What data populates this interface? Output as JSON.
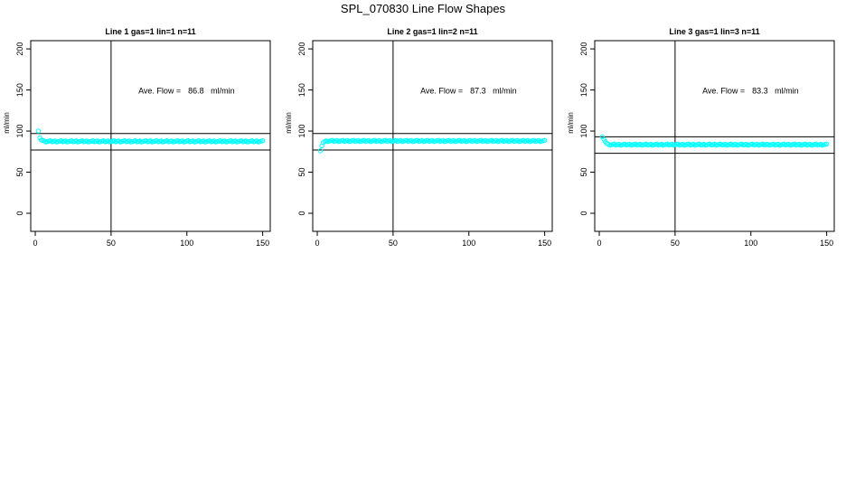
{
  "title": "SPL_070830  Line Flow Shapes",
  "colors": {
    "points": "#00ffff",
    "axes": "#000000",
    "background": "#ffffff"
  },
  "chart_data": [
    {
      "type": "scatter",
      "title": "Line 1 gas=1 lin=1 n=11",
      "ylabel": "ml/min",
      "xlim": [
        -3,
        155
      ],
      "ylim": [
        -22,
        210
      ],
      "xticks": [
        0,
        50,
        100,
        150
      ],
      "yticks": [
        0,
        50,
        100,
        150,
        200
      ],
      "vline": 50,
      "hlines": [
        97,
        77
      ],
      "annotation": {
        "prefix": "Ave. Flow =",
        "value": "86.8",
        "unit": "ml/min"
      },
      "x_range": [
        2,
        150
      ],
      "start_points": [
        [
          2,
          100
        ],
        [
          3,
          92
        ],
        [
          4,
          89
        ],
        [
          5,
          88.5
        ],
        [
          6,
          88
        ]
      ],
      "steady_value": 87.5
    },
    {
      "type": "scatter",
      "title": "Line 2 gas=1 lin=2 n=11",
      "ylabel": "ml/min",
      "xlim": [
        -3,
        155
      ],
      "ylim": [
        -22,
        210
      ],
      "xticks": [
        0,
        50,
        100,
        150
      ],
      "yticks": [
        0,
        50,
        100,
        150,
        200
      ],
      "vline": 50,
      "hlines": [
        97,
        77
      ],
      "annotation": {
        "prefix": "Ave. Flow =",
        "value": "87.3",
        "unit": "ml/min"
      },
      "x_range": [
        2,
        150
      ],
      "start_points": [
        [
          2,
          76
        ],
        [
          3,
          82
        ],
        [
          4,
          86
        ],
        [
          5,
          87.5
        ],
        [
          6,
          88
        ]
      ],
      "steady_value": 88
    },
    {
      "type": "scatter",
      "title": "Line 3 gas=1 lin=3 n=11",
      "ylabel": "ml/min",
      "xlim": [
        -3,
        155
      ],
      "ylim": [
        -22,
        210
      ],
      "xticks": [
        0,
        50,
        100,
        150
      ],
      "yticks": [
        0,
        50,
        100,
        150,
        200
      ],
      "vline": 50,
      "hlines": [
        93,
        73
      ],
      "annotation": {
        "prefix": "Ave. Flow =",
        "value": "83.3",
        "unit": "ml/min"
      },
      "x_range": [
        2,
        150
      ],
      "start_points": [
        [
          2,
          93
        ],
        [
          3,
          90
        ],
        [
          4,
          87
        ],
        [
          5,
          85
        ],
        [
          6,
          84
        ]
      ],
      "steady_value": 83.5
    }
  ]
}
